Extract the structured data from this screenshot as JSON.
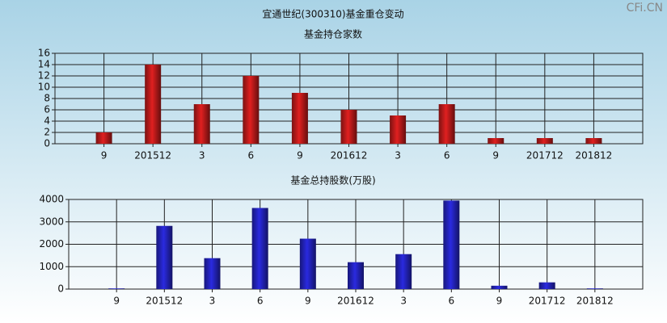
{
  "title": "宜通世纪(300310)基金重仓变动",
  "watermark": "CFi.CN",
  "chart_data": [
    {
      "type": "bar",
      "title": "基金持仓家数",
      "color": "#e02020",
      "categories": [
        "9",
        "201512",
        "3",
        "6",
        "9",
        "201612",
        "3",
        "6",
        "9",
        "201712",
        "201812"
      ],
      "values": [
        2,
        14,
        7,
        12,
        9,
        6,
        5,
        7,
        1,
        1,
        1
      ],
      "ylim": [
        0,
        16
      ],
      "yticks": [
        0,
        2,
        4,
        6,
        8,
        10,
        12,
        14,
        16
      ],
      "grid": true
    },
    {
      "type": "bar",
      "title": "基金总持股数(万股)",
      "color": "#2a2ae0",
      "categories": [
        "9",
        "201512",
        "3",
        "6",
        "9",
        "201612",
        "3",
        "6",
        "9",
        "201712",
        "201812"
      ],
      "values": [
        30,
        2820,
        1380,
        3620,
        2250,
        1200,
        1560,
        3950,
        150,
        300,
        30
      ],
      "ylim": [
        0,
        4000
      ],
      "yticks": [
        0,
        1000,
        2000,
        3000,
        4000
      ],
      "grid": true
    }
  ]
}
